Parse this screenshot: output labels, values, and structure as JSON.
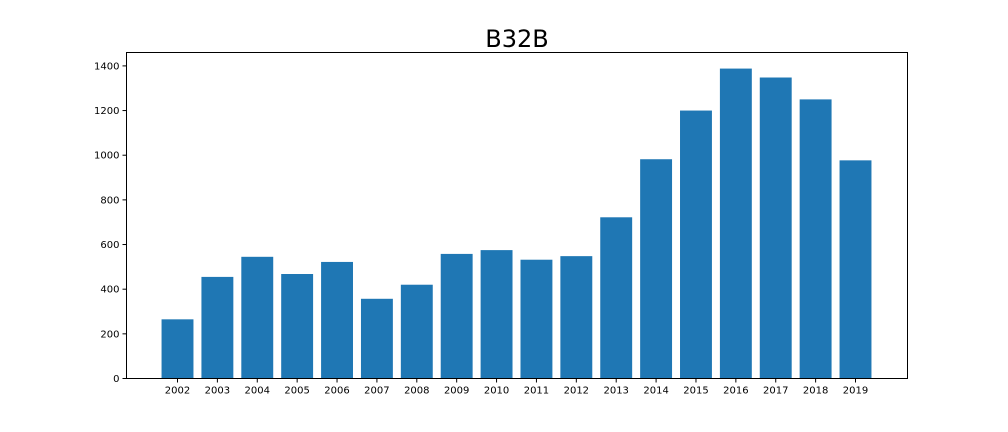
{
  "chart_data": {
    "type": "bar",
    "title": "B32B",
    "xlabel": "",
    "ylabel": "",
    "categories": [
      "2002",
      "2003",
      "2004",
      "2005",
      "2006",
      "2007",
      "2008",
      "2009",
      "2010",
      "2011",
      "2012",
      "2013",
      "2014",
      "2015",
      "2016",
      "2017",
      "2018",
      "2019"
    ],
    "values": [
      265,
      455,
      545,
      468,
      522,
      357,
      420,
      558,
      575,
      532,
      548,
      722,
      982,
      1200,
      1388,
      1348,
      1250,
      977
    ],
    "ylim": [
      0,
      1460
    ],
    "yticks": [
      0,
      200,
      400,
      600,
      800,
      1000,
      1200,
      1400
    ],
    "grid": false,
    "bar_color": "#1f77b4"
  }
}
